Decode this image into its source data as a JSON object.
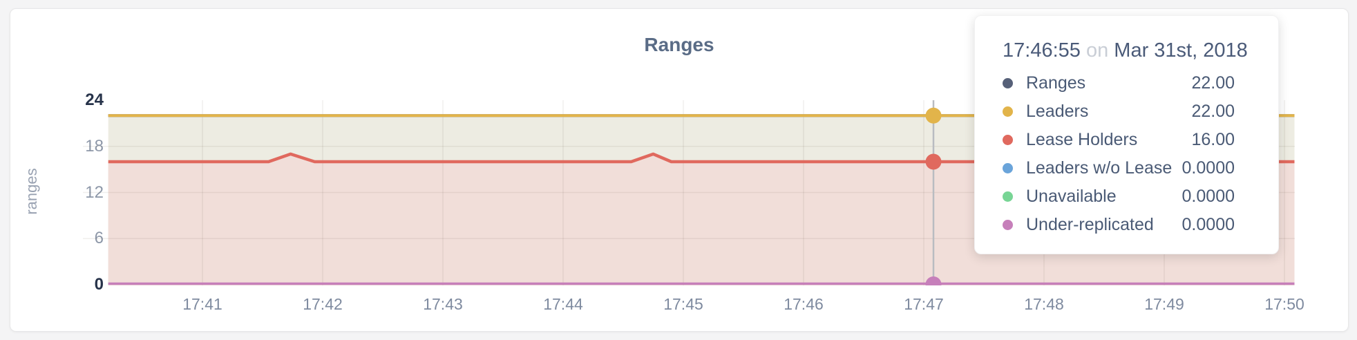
{
  "page": {
    "title": "Ranges"
  },
  "y_axis": {
    "label": "ranges",
    "ticks": [
      {
        "value": 24,
        "strong": true
      },
      {
        "value": 18,
        "strong": false
      },
      {
        "value": 12,
        "strong": false
      },
      {
        "value": 6,
        "strong": false
      },
      {
        "value": 0,
        "strong": true
      }
    ]
  },
  "x_axis": {
    "ticks": [
      "17:41",
      "17:42",
      "17:43",
      "17:44",
      "17:45",
      "17:46",
      "17:47",
      "17:48",
      "17:49",
      "17:50"
    ]
  },
  "tooltip": {
    "time": "17:46:55",
    "conjunction": "on",
    "date": "Mar 31st, 2018",
    "rows": [
      {
        "label": "Ranges",
        "value": "22.00",
        "color": "#566078"
      },
      {
        "label": "Leaders",
        "value": "22.00",
        "color": "#e2b44a"
      },
      {
        "label": "Lease Holders",
        "value": "16.00",
        "color": "#e0695e"
      },
      {
        "label": "Leaders w/o Lease",
        "value": "0.0000",
        "color": "#6aa4da"
      },
      {
        "label": "Unavailable",
        "value": "0.0000",
        "color": "#78d595"
      },
      {
        "label": "Under-replicated",
        "value": "0.0000",
        "color": "#c67fba"
      }
    ]
  },
  "chart_data": {
    "type": "line",
    "title": "Ranges",
    "ylabel": "ranges",
    "ylim": [
      0,
      24
    ],
    "y_ticks": [
      0,
      6,
      12,
      18,
      24
    ],
    "x_tick_labels": [
      "17:41",
      "17:42",
      "17:43",
      "17:44",
      "17:45",
      "17:46",
      "17:47",
      "17:48",
      "17:49",
      "17:50"
    ],
    "x_range": [
      "17:40:13",
      "17:50:05"
    ],
    "grid": true,
    "legend_position": "tooltip-top-right",
    "series": [
      {
        "name": "Ranges",
        "color": "#566078",
        "points": [
          [
            "17:40:13",
            22
          ],
          [
            "17:50:05",
            22
          ]
        ]
      },
      {
        "name": "Leaders",
        "color": "#e2b44a",
        "area": "#edece2",
        "points": [
          [
            "17:40:13",
            22
          ],
          [
            "17:50:05",
            22
          ]
        ]
      },
      {
        "name": "Lease Holders",
        "color": "#e0695e",
        "area": "#f1ded9",
        "points": [
          [
            "17:40:13",
            16
          ],
          [
            "17:41:33",
            16
          ],
          [
            "17:41:44",
            17
          ],
          [
            "17:41:56",
            16
          ],
          [
            "17:44:34",
            16
          ],
          [
            "17:44:45",
            17
          ],
          [
            "17:44:54",
            16
          ],
          [
            "17:50:05",
            16
          ]
        ]
      },
      {
        "name": "Leaders w/o Lease",
        "color": "#6aa4da",
        "points": [
          [
            "17:40:13",
            0
          ],
          [
            "17:50:05",
            0
          ]
        ]
      },
      {
        "name": "Unavailable",
        "color": "#78d595",
        "points": [
          [
            "17:40:13",
            0
          ],
          [
            "17:50:05",
            0
          ]
        ]
      },
      {
        "name": "Under-replicated",
        "color": "#c67fba",
        "points": [
          [
            "17:40:13",
            0
          ],
          [
            "17:50:05",
            0
          ]
        ]
      }
    ],
    "hover": {
      "time": "17:46:55",
      "date": "Mar 31st, 2018",
      "markers": [
        {
          "series": "Leaders",
          "color": "#e2b44a",
          "value": 22
        },
        {
          "series": "Lease Holders",
          "color": "#e0695e",
          "value": 16
        },
        {
          "series": "Under-replicated",
          "color": "#c67fba",
          "value": 0
        }
      ]
    }
  }
}
